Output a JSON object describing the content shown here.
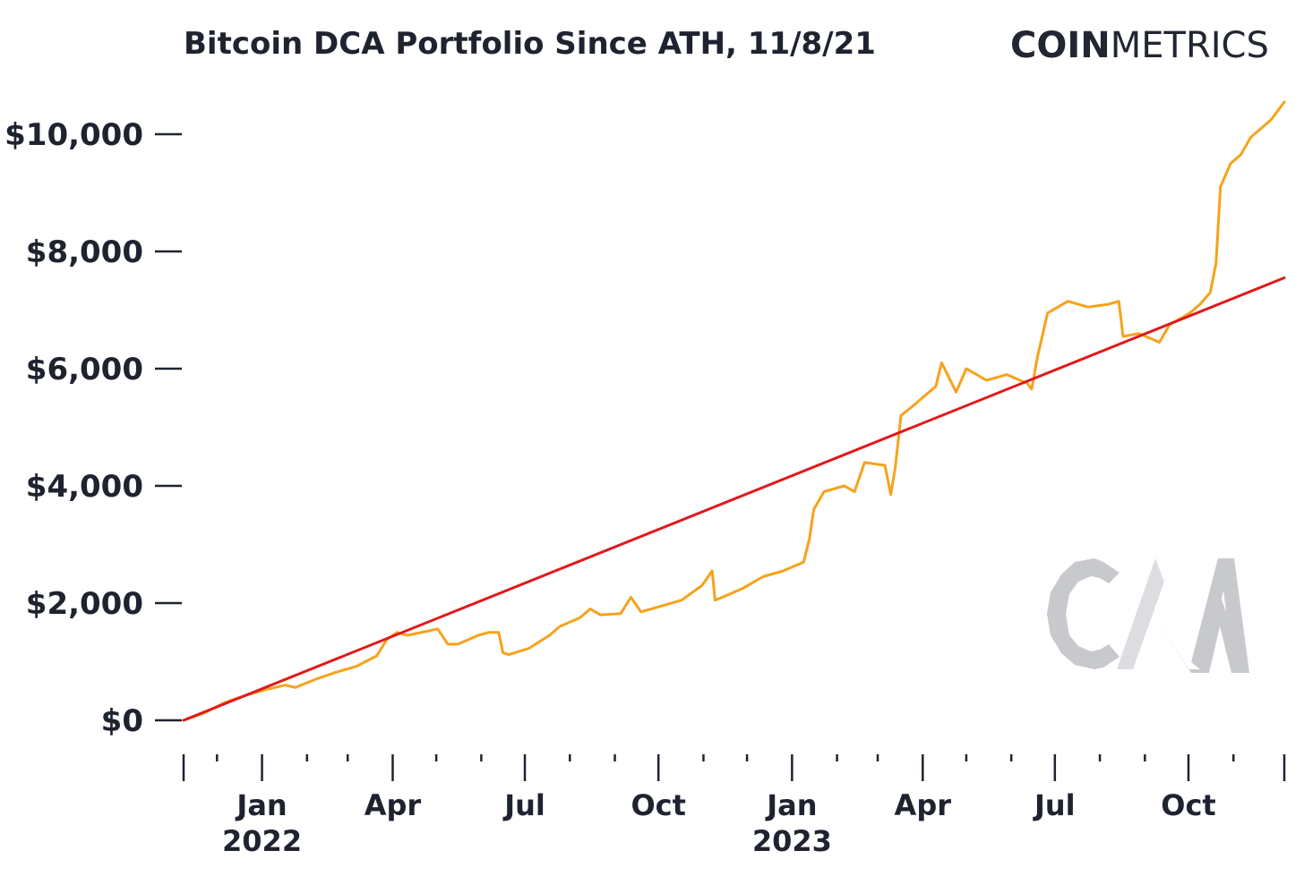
{
  "header": {
    "title": "Bitcoin DCA Portfolio Since ATH, 11/8/21",
    "brand_bold": "COIN",
    "brand_light": "METRICS",
    "watermark_logo": "CM"
  },
  "colors": {
    "portfolio": "#f7a21b",
    "invested": "#e0191b",
    "text": "#1f2330",
    "watermark": "#c8c9cc"
  },
  "chart_data": {
    "type": "line",
    "title": "Bitcoin DCA Portfolio Since ATH, 11/8/21",
    "xlabel": "",
    "ylabel": "",
    "xlim": [
      "2021-11-08",
      "2023-12-06"
    ],
    "ylim": [
      0,
      10500
    ],
    "y_ticks": [
      {
        "value": 0,
        "label": "$0"
      },
      {
        "value": 2000,
        "label": "$2,000"
      },
      {
        "value": 4000,
        "label": "$4,000"
      },
      {
        "value": 6000,
        "label": "$6,000"
      },
      {
        "value": 8000,
        "label": "$8,000"
      },
      {
        "value": 10000,
        "label": "$10,000"
      }
    ],
    "x_major_ticks": [
      {
        "date": "2021-11-08",
        "label": "",
        "year": ""
      },
      {
        "date": "2022-01-01",
        "label": "Jan",
        "year": "2022"
      },
      {
        "date": "2022-04-01",
        "label": "Apr",
        "year": ""
      },
      {
        "date": "2022-07-01",
        "label": "Jul",
        "year": ""
      },
      {
        "date": "2022-10-01",
        "label": "Oct",
        "year": ""
      },
      {
        "date": "2023-01-01",
        "label": "Jan",
        "year": "2023"
      },
      {
        "date": "2023-04-01",
        "label": "Apr",
        "year": ""
      },
      {
        "date": "2023-07-01",
        "label": "Jul",
        "year": ""
      },
      {
        "date": "2023-10-01",
        "label": "Oct",
        "year": ""
      },
      {
        "date": "2023-12-06",
        "label": "",
        "year": ""
      }
    ],
    "x_minor_ticks": [
      "2021-12-01",
      "2022-02-01",
      "2022-03-01",
      "2022-05-01",
      "2022-06-01",
      "2022-08-01",
      "2022-09-01",
      "2022-11-01",
      "2022-12-01",
      "2023-02-01",
      "2023-03-01",
      "2023-05-01",
      "2023-06-01",
      "2023-08-01",
      "2023-09-01",
      "2023-11-01"
    ],
    "series": [
      {
        "color": "#f7a21b",
        "points": [
          [
            "2021-11-08",
            0
          ],
          [
            "2021-11-22",
            120
          ],
          [
            "2021-12-06",
            300
          ],
          [
            "2021-12-20",
            420
          ],
          [
            "2022-01-03",
            520
          ],
          [
            "2022-01-17",
            600
          ],
          [
            "2022-01-24",
            560
          ],
          [
            "2022-02-07",
            700
          ],
          [
            "2022-02-21",
            820
          ],
          [
            "2022-03-07",
            920
          ],
          [
            "2022-03-21",
            1100
          ],
          [
            "2022-03-28",
            1380
          ],
          [
            "2022-04-04",
            1500
          ],
          [
            "2022-04-11",
            1450
          ],
          [
            "2022-04-25",
            1520
          ],
          [
            "2022-05-02",
            1560
          ],
          [
            "2022-05-09",
            1300
          ],
          [
            "2022-05-16",
            1300
          ],
          [
            "2022-05-30",
            1450
          ],
          [
            "2022-06-06",
            1500
          ],
          [
            "2022-06-13",
            1500
          ],
          [
            "2022-06-16",
            1150
          ],
          [
            "2022-06-20",
            1120
          ],
          [
            "2022-07-04",
            1230
          ],
          [
            "2022-07-18",
            1450
          ],
          [
            "2022-07-25",
            1600
          ],
          [
            "2022-08-08",
            1750
          ],
          [
            "2022-08-15",
            1900
          ],
          [
            "2022-08-22",
            1800
          ],
          [
            "2022-09-05",
            1820
          ],
          [
            "2022-09-12",
            2100
          ],
          [
            "2022-09-19",
            1850
          ],
          [
            "2022-10-03",
            1950
          ],
          [
            "2022-10-17",
            2050
          ],
          [
            "2022-10-31",
            2300
          ],
          [
            "2022-11-07",
            2550
          ],
          [
            "2022-11-09",
            2050
          ],
          [
            "2022-11-14",
            2100
          ],
          [
            "2022-11-28",
            2250
          ],
          [
            "2022-12-12",
            2450
          ],
          [
            "2022-12-26",
            2550
          ],
          [
            "2023-01-09",
            2700
          ],
          [
            "2023-01-13",
            3100
          ],
          [
            "2023-01-16",
            3600
          ],
          [
            "2023-01-23",
            3900
          ],
          [
            "2023-02-06",
            4000
          ],
          [
            "2023-02-13",
            3900
          ],
          [
            "2023-02-20",
            4400
          ],
          [
            "2023-03-06",
            4350
          ],
          [
            "2023-03-10",
            3850
          ],
          [
            "2023-03-13",
            4300
          ],
          [
            "2023-03-17",
            5200
          ],
          [
            "2023-03-27",
            5400
          ],
          [
            "2023-04-10",
            5700
          ],
          [
            "2023-04-14",
            6100
          ],
          [
            "2023-04-24",
            5600
          ],
          [
            "2023-05-01",
            6000
          ],
          [
            "2023-05-15",
            5800
          ],
          [
            "2023-05-29",
            5900
          ],
          [
            "2023-06-12",
            5750
          ],
          [
            "2023-06-15",
            5650
          ],
          [
            "2023-06-19",
            6200
          ],
          [
            "2023-06-26",
            6950
          ],
          [
            "2023-07-10",
            7150
          ],
          [
            "2023-07-24",
            7050
          ],
          [
            "2023-08-07",
            7100
          ],
          [
            "2023-08-14",
            7150
          ],
          [
            "2023-08-17",
            6550
          ],
          [
            "2023-08-28",
            6600
          ],
          [
            "2023-09-11",
            6450
          ],
          [
            "2023-09-18",
            6750
          ],
          [
            "2023-10-02",
            6950
          ],
          [
            "2023-10-09",
            7100
          ],
          [
            "2023-10-16",
            7300
          ],
          [
            "2023-10-20",
            7800
          ],
          [
            "2023-10-23",
            9100
          ],
          [
            "2023-10-30",
            9500
          ],
          [
            "2023-11-06",
            9650
          ],
          [
            "2023-11-13",
            9950
          ],
          [
            "2023-11-20",
            10100
          ],
          [
            "2023-11-27",
            10250
          ],
          [
            "2023-12-06",
            10550
          ]
        ]
      },
      {
        "color": "#e0191b",
        "points": [
          [
            "2021-11-08",
            0
          ],
          [
            "2023-12-06",
            7550
          ]
        ]
      }
    ]
  }
}
